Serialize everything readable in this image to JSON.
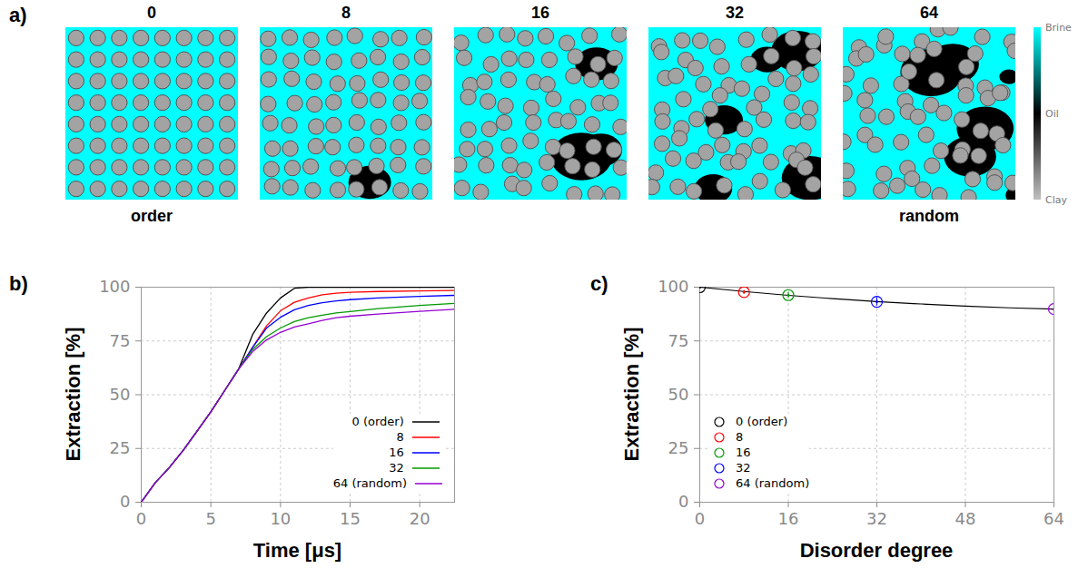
{
  "figure": {
    "panel_a": {
      "letter": "a)",
      "titles": [
        "0",
        "8",
        "16",
        "32",
        "64"
      ],
      "left_caption": "order",
      "right_caption": "random",
      "colorbar": {
        "labels": [
          "Brine",
          "Oil",
          "Clay"
        ],
        "colors": [
          "#00ffff",
          "#000000",
          "#c0c0c0"
        ]
      }
    }
  },
  "chart_data": [
    {
      "letter": "b)",
      "type": "line",
      "xlabel": "Time [μs]",
      "ylabel": "Extraction [%]",
      "x": [
        0,
        1,
        2,
        3,
        4,
        5,
        6,
        7,
        8,
        9,
        10,
        11,
        12,
        13,
        14,
        15,
        17,
        20,
        22.5
      ],
      "xlim": [
        0,
        22.5
      ],
      "xticks": [
        0,
        5,
        10,
        15,
        20
      ],
      "ylim": [
        0,
        100
      ],
      "yticks": [
        0,
        25,
        50,
        75,
        100
      ],
      "grid": true,
      "legend": "lower right",
      "series": [
        {
          "name": "0 (order)",
          "color": "#000000",
          "values": [
            0,
            9,
            16,
            24,
            33,
            42,
            52,
            62,
            78,
            88,
            95,
            99.5,
            100,
            100,
            100,
            100,
            100,
            100,
            100
          ]
        },
        {
          "name": "8",
          "color": "#ff0000",
          "values": [
            0,
            9,
            16,
            24,
            33,
            42,
            52,
            62,
            72,
            82,
            89,
            93,
            95,
            96.5,
            97.2,
            97.6,
            98,
            98.3,
            98.5
          ]
        },
        {
          "name": "16",
          "color": "#0000ff",
          "values": [
            0,
            9,
            16,
            24,
            33,
            42,
            52,
            62,
            72,
            81,
            86,
            89.5,
            91.5,
            92.8,
            93.6,
            94.2,
            95,
            95.7,
            96.2
          ]
        },
        {
          "name": "32",
          "color": "#009900",
          "values": [
            0,
            9,
            16,
            24,
            33,
            42,
            52,
            62,
            71,
            77,
            81,
            84,
            85.8,
            87,
            88,
            88.7,
            90,
            91.5,
            92.5
          ]
        },
        {
          "name": "64 (random)",
          "color": "#9400d3",
          "values": [
            0,
            9,
            16,
            24,
            33,
            42,
            52,
            62,
            70,
            75.5,
            79,
            81.5,
            83,
            84.5,
            85.8,
            86.5,
            87.5,
            88.8,
            89.7
          ]
        }
      ]
    },
    {
      "letter": "c)",
      "type": "scatter",
      "xlabel": "Disorder degree",
      "ylabel": "Extraction [%]",
      "xlim": [
        0,
        64
      ],
      "xticks": [
        0,
        16,
        32,
        48,
        64
      ],
      "ylim": [
        0,
        100
      ],
      "yticks": [
        0,
        25,
        50,
        75,
        100
      ],
      "grid": true,
      "legend": "lower left",
      "marker": "circle",
      "series": [
        {
          "name": "0 (order)",
          "color": "#000000",
          "x": [
            0
          ],
          "values": [
            100
          ],
          "errors": [
            0.5
          ]
        },
        {
          "name": "8",
          "color": "#ff0000",
          "x": [
            8
          ],
          "values": [
            97.7
          ],
          "errors": [
            0.8
          ]
        },
        {
          "name": "16",
          "color": "#009900",
          "x": [
            16
          ],
          "values": [
            96.3
          ],
          "errors": [
            1.5
          ]
        },
        {
          "name": "32",
          "color": "#0000ff",
          "x": [
            32
          ],
          "values": [
            93.2
          ],
          "errors": [
            2
          ]
        },
        {
          "name": "64 (random)",
          "color": "#9400d3",
          "x": [
            64
          ],
          "values": [
            89.8
          ],
          "errors": [
            1.5
          ]
        }
      ],
      "fit": {
        "type": "line",
        "color": "#000000",
        "x": [
          0,
          8,
          16,
          24,
          32,
          40,
          48,
          56,
          64
        ],
        "values": [
          100,
          98,
          96.2,
          94.7,
          93.3,
          92.2,
          91.2,
          90.4,
          89.8
        ]
      }
    }
  ]
}
